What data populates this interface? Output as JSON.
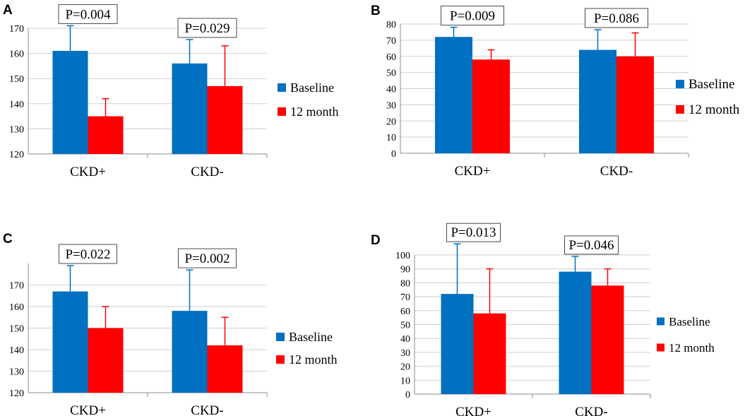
{
  "colors": {
    "baseline": "#0070c0",
    "month12": "#ff0000"
  },
  "chart_data": [
    {
      "panel": "A",
      "type": "bar",
      "categories": [
        "CKD+",
        "CKD-"
      ],
      "ylim": [
        120,
        170
      ],
      "yticks": [
        120,
        130,
        140,
        150,
        160,
        170
      ],
      "series": [
        {
          "name": "Baseline",
          "values": [
            161,
            156
          ],
          "error_upper": [
            171,
            165.5
          ]
        },
        {
          "name": "12 month",
          "values": [
            135,
            147
          ],
          "error_upper": [
            142,
            163
          ]
        }
      ],
      "annotations": [
        "P=0.004",
        "P=0.029"
      ],
      "legend": "right"
    },
    {
      "panel": "B",
      "type": "bar",
      "categories": [
        "CKD+",
        "CKD-"
      ],
      "ylim": [
        0,
        80
      ],
      "yticks": [
        0,
        10,
        20,
        30,
        40,
        50,
        60,
        70,
        80
      ],
      "series": [
        {
          "name": "Baseline",
          "values": [
            72,
            64
          ],
          "error_upper": [
            78,
            76.5
          ]
        },
        {
          "name": "12 month",
          "values": [
            58,
            60
          ],
          "error_upper": [
            64,
            74.5
          ]
        }
      ],
      "annotations": [
        "P=0.009",
        "P=0.086"
      ],
      "legend": "right"
    },
    {
      "panel": "C",
      "type": "bar",
      "categories": [
        "CKD+",
        "CKD-"
      ],
      "ylim": [
        120,
        180
      ],
      "yticks": [
        120,
        130,
        140,
        150,
        160,
        170
      ],
      "series": [
        {
          "name": "Baseline",
          "values": [
            167,
            158
          ],
          "error_upper": [
            179,
            177
          ]
        },
        {
          "name": "12 month",
          "values": [
            150,
            142
          ],
          "error_upper": [
            160,
            155
          ]
        }
      ],
      "annotations": [
        "P=0.022",
        "P=0.002"
      ],
      "legend": "right"
    },
    {
      "panel": "D",
      "type": "bar",
      "categories": [
        "CKD+",
        "CKD-"
      ],
      "ylim": [
        0,
        100
      ],
      "yticks": [
        0,
        10,
        20,
        30,
        40,
        50,
        60,
        70,
        80,
        90,
        100
      ],
      "series": [
        {
          "name": "Baseline",
          "values": [
            72,
            88
          ],
          "error_upper": [
            108,
            99
          ]
        },
        {
          "name": "12 month",
          "values": [
            58,
            78
          ],
          "error_upper": [
            90,
            90
          ]
        }
      ],
      "annotations": [
        "P=0.013",
        "P=0.046"
      ],
      "legend": "right"
    }
  ]
}
